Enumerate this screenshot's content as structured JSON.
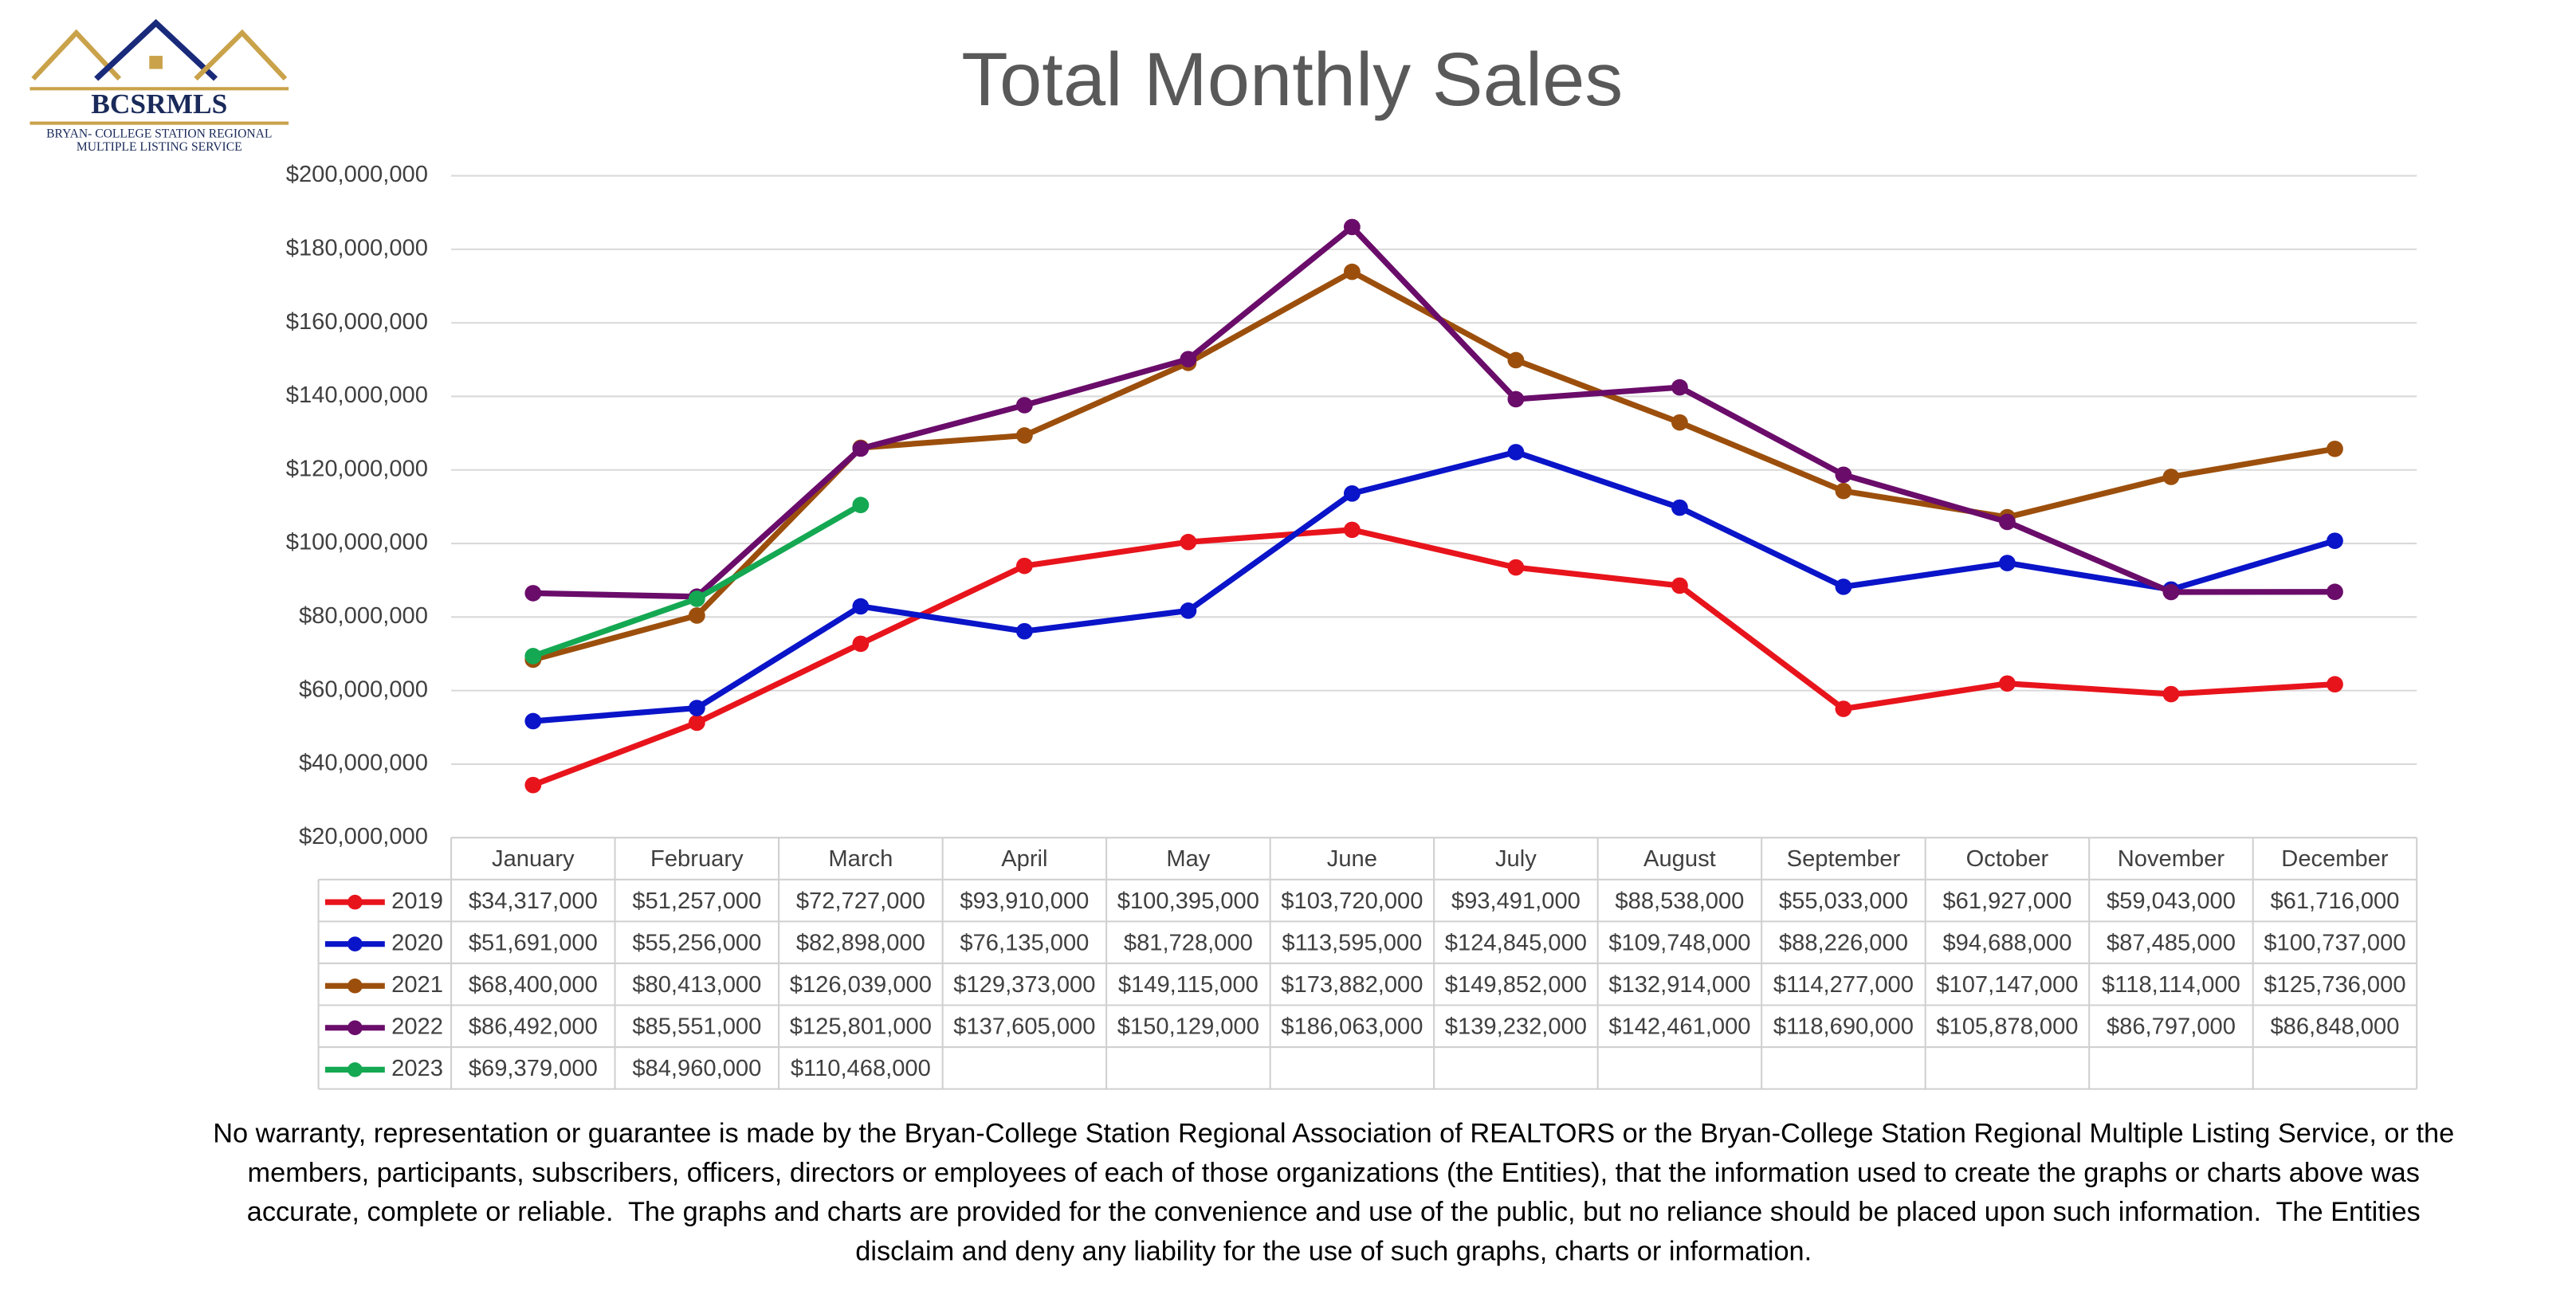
{
  "logo": {
    "name": "BCSRMLS",
    "line1": "BRYAN- COLLEGE STATION REGIONAL",
    "line2": "MULTIPLE LISTING SERVICE"
  },
  "chart_data": {
    "type": "line",
    "title": "Total Monthly Sales",
    "categories": [
      "January",
      "February",
      "March",
      "April",
      "May",
      "June",
      "July",
      "August",
      "September",
      "October",
      "November",
      "December"
    ],
    "ylim": [
      20000000,
      200000000
    ],
    "yticks": [
      {
        "value": 20000000,
        "label": "$20,000,000"
      },
      {
        "value": 40000000,
        "label": "$40,000,000"
      },
      {
        "value": 60000000,
        "label": "$60,000,000"
      },
      {
        "value": 80000000,
        "label": "$80,000,000"
      },
      {
        "value": 100000000,
        "label": "$100,000,000"
      },
      {
        "value": 120000000,
        "label": "$120,000,000"
      },
      {
        "value": 140000000,
        "label": "$140,000,000"
      },
      {
        "value": 160000000,
        "label": "$160,000,000"
      },
      {
        "value": 180000000,
        "label": "$180,000,000"
      },
      {
        "value": 200000000,
        "label": "$200,000,000"
      }
    ],
    "grid": true,
    "series": [
      {
        "name": "2019",
        "color": "#e8141c",
        "values": [
          34317000,
          51257000,
          72727000,
          93910000,
          100395000,
          103720000,
          93491000,
          88538000,
          55033000,
          61927000,
          59043000,
          61716000
        ],
        "value_labels": [
          "$34,317,000",
          "$51,257,000",
          "$72,727,000",
          "$93,910,000",
          "$100,395,000",
          "$103,720,000",
          "$93,491,000",
          "$88,538,000",
          "$55,033,000",
          "$61,927,000",
          "$59,043,000",
          "$61,716,000"
        ]
      },
      {
        "name": "2020",
        "color": "#0a14c8",
        "values": [
          51691000,
          55256000,
          82898000,
          76135000,
          81728000,
          113595000,
          124845000,
          109748000,
          88226000,
          94688000,
          87485000,
          100737000
        ],
        "value_labels": [
          "$51,691,000",
          "$55,256,000",
          "$82,898,000",
          "$76,135,000",
          "$81,728,000",
          "$113,595,000",
          "$124,845,000",
          "$109,748,000",
          "$88,226,000",
          "$94,688,000",
          "$87,485,000",
          "$100,737,000"
        ]
      },
      {
        "name": "2021",
        "color": "#9c4f0c",
        "values": [
          68400000,
          80413000,
          126039000,
          129373000,
          149115000,
          173882000,
          149852000,
          132914000,
          114277000,
          107147000,
          118114000,
          125736000
        ],
        "value_labels": [
          "$68,400,000",
          "$80,413,000",
          "$126,039,000",
          "$129,373,000",
          "$149,115,000",
          "$173,882,000",
          "$149,852,000",
          "$132,914,000",
          "$114,277,000",
          "$107,147,000",
          "$118,114,000",
          "$125,736,000"
        ]
      },
      {
        "name": "2022",
        "color": "#6a0c6a",
        "values": [
          86492000,
          85551000,
          125801000,
          137605000,
          150129000,
          186063000,
          139232000,
          142461000,
          118690000,
          105878000,
          86797000,
          86848000
        ],
        "value_labels": [
          "$86,492,000",
          "$85,551,000",
          "$125,801,000",
          "$137,605,000",
          "$150,129,000",
          "$186,063,000",
          "$139,232,000",
          "$142,461,000",
          "$118,690,000",
          "$105,878,000",
          "$86,797,000",
          "$86,848,000"
        ]
      },
      {
        "name": "2023",
        "color": "#14a852",
        "values": [
          69379000,
          84960000,
          110468000,
          null,
          null,
          null,
          null,
          null,
          null,
          null,
          null,
          null
        ],
        "value_labels": [
          "$69,379,000",
          "$84,960,000",
          "$110,468,000",
          null,
          null,
          null,
          null,
          null,
          null,
          null,
          null,
          null
        ]
      }
    ]
  },
  "disclaimer": [
    "No warranty, representation or guarantee is made by the Bryan-College Station Regional Association of REALTORS or the Bryan-College Station Regional Multiple Listing Service, or the",
    "members, participants, subscribers, officers, directors or employees of each of those organizations (the Entities), that the information used to create the graphs or charts above was",
    "accurate, complete or reliable.  The graphs and charts are provided for the convenience and use of the public, but no reliance should be placed upon such information.  The Entities",
    "disclaim and deny any liability for the use of such graphs, charts or information."
  ]
}
